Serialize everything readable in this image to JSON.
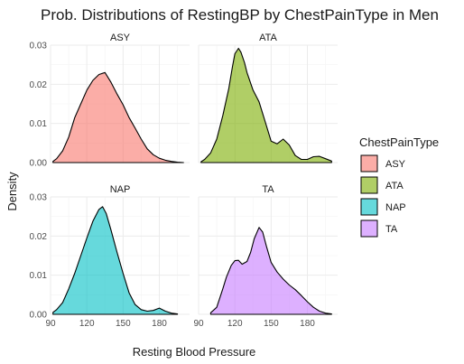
{
  "chart_data": {
    "type": "area",
    "title": "Prob. Distributions of RestingBP by ChestPainType in Men",
    "xlabel": "Resting Blood Pressure",
    "ylabel": "Density",
    "xlim": [
      90,
      205
    ],
    "ylim": [
      0,
      0.03
    ],
    "x_ticks": [
      90,
      120,
      150,
      180
    ],
    "y_ticks": [
      0.0,
      0.01,
      0.02,
      0.03
    ],
    "x_tick_labels": [
      "90",
      "120",
      "150",
      "180"
    ],
    "y_tick_labels": [
      "0.00",
      "0.01",
      "0.02",
      "0.03"
    ],
    "grid": true,
    "legend": {
      "title": "ChestPainType",
      "placement": "right"
    },
    "series": [
      {
        "name": "ASY",
        "color": "#F8766D",
        "x": [
          92,
          95,
          100,
          105,
          110,
          115,
          120,
          125,
          130,
          135,
          140,
          145,
          150,
          155,
          160,
          165,
          170,
          175,
          180,
          185,
          190,
          195,
          200
        ],
        "y": [
          0.0003,
          0.001,
          0.003,
          0.0065,
          0.0115,
          0.015,
          0.0185,
          0.021,
          0.0225,
          0.023,
          0.0205,
          0.0175,
          0.0148,
          0.0115,
          0.0088,
          0.006,
          0.0035,
          0.002,
          0.0011,
          0.0006,
          0.0003,
          0.0001,
          0.0
        ]
      },
      {
        "name": "ATA",
        "color": "#7CAE00",
        "x": [
          92,
          95,
          100,
          105,
          110,
          115,
          118,
          120,
          123,
          125,
          128,
          130,
          135,
          140,
          145,
          150,
          155,
          160,
          165,
          170,
          175,
          180,
          185,
          190,
          195,
          200
        ],
        "y": [
          0.0002,
          0.0008,
          0.0025,
          0.006,
          0.012,
          0.019,
          0.0245,
          0.0278,
          0.0292,
          0.0282,
          0.0255,
          0.023,
          0.0185,
          0.0155,
          0.0105,
          0.0055,
          0.0048,
          0.006,
          0.0045,
          0.0018,
          0.0008,
          0.0008,
          0.0015,
          0.0016,
          0.001,
          0.0004
        ]
      },
      {
        "name": "NAP",
        "color": "#00BFC4",
        "x": [
          92,
          95,
          100,
          105,
          110,
          115,
          120,
          125,
          130,
          133,
          136,
          140,
          145,
          150,
          155,
          160,
          165,
          170,
          175,
          180,
          185,
          190,
          195
        ],
        "y": [
          0.0005,
          0.0012,
          0.003,
          0.0065,
          0.0105,
          0.015,
          0.0195,
          0.0238,
          0.0268,
          0.0275,
          0.0258,
          0.0215,
          0.0158,
          0.0105,
          0.0055,
          0.0025,
          0.0012,
          0.0008,
          0.001,
          0.0016,
          0.0008,
          0.0003,
          0.0001
        ]
      },
      {
        "name": "TA",
        "color": "#C77CFF",
        "x": [
          100,
          105,
          110,
          113,
          117,
          120,
          123,
          126,
          130,
          133,
          136,
          140,
          143,
          146,
          150,
          155,
          160,
          165,
          170,
          175,
          180,
          185,
          190,
          195,
          200
        ],
        "y": [
          0.0004,
          0.0018,
          0.0065,
          0.0095,
          0.0125,
          0.0137,
          0.0138,
          0.0128,
          0.0135,
          0.0158,
          0.0193,
          0.0222,
          0.021,
          0.0175,
          0.0133,
          0.0108,
          0.009,
          0.0075,
          0.0063,
          0.0048,
          0.0032,
          0.0018,
          0.0008,
          0.0003,
          0.0001
        ]
      }
    ]
  }
}
